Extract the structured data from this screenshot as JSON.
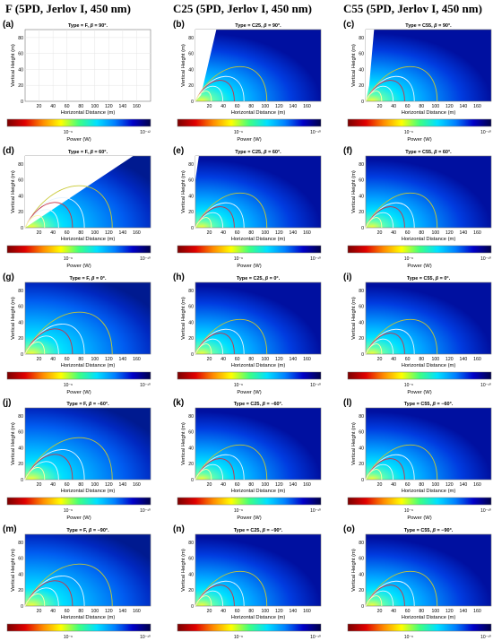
{
  "columns": [
    {
      "header": "F (5PD, Jerlov I, 450 nm)",
      "type": "F"
    },
    {
      "header": "C25 (5PD, Jerlov I, 450 nm)",
      "type": "C25"
    },
    {
      "header": "C55 (5PD, Jerlov I, 450 nm)",
      "type": "C55"
    }
  ],
  "rows": [
    {
      "beta": "90",
      "labels": [
        "(a)",
        "(b)",
        "(c)"
      ]
    },
    {
      "beta": "60",
      "labels": [
        "(d)",
        "(e)",
        "(f)"
      ]
    },
    {
      "beta": "0",
      "labels": [
        "(g)",
        "(h)",
        "(i)"
      ]
    },
    {
      "beta": "−60",
      "labels": [
        "(j)",
        "(k)",
        "(l)"
      ]
    },
    {
      "beta": "−90",
      "labels": [
        "(m)",
        "(n)",
        "(o)"
      ]
    }
  ],
  "axis": {
    "xlabel": "Horizontal Distance (m)",
    "ylabel": "Vertical Height (m)",
    "xticks": [
      "20",
      "40",
      "60",
      "80",
      "100",
      "120",
      "140",
      "160"
    ],
    "yticks": [
      "0",
      "20",
      "40",
      "60",
      "80"
    ]
  },
  "colorbar": {
    "label": "Power (W)",
    "tick_left": "10⁻⁶",
    "tick_right": "10⁻¹⁰",
    "tick_right_a": "10⁻¹²",
    "colors": [
      "#7a0000",
      "#e00000",
      "#ff8c00",
      "#ffff00",
      "#40ff80",
      "#00e0ff",
      "#0080ff",
      "#0000c8",
      "#00004a"
    ]
  },
  "chart_data": {
    "type": "heatmap",
    "title_pattern": "Type = {type}, β = {beta}°",
    "xlabel": "Horizontal Distance (m)",
    "ylabel": "Vertical Height (m)",
    "xlim": [
      0,
      180
    ],
    "ylim": [
      0,
      90
    ],
    "panels": [
      {
        "label": "(a)",
        "type": "F",
        "beta": 90
      },
      {
        "label": "(b)",
        "type": "C25",
        "beta": 90
      },
      {
        "label": "(c)",
        "type": "C55",
        "beta": 90
      },
      {
        "label": "(d)",
        "type": "F",
        "beta": 60
      },
      {
        "label": "(e)",
        "type": "C25",
        "beta": 60
      },
      {
        "label": "(f)",
        "type": "C55",
        "beta": 60
      },
      {
        "label": "(g)",
        "type": "F",
        "beta": 0
      },
      {
        "label": "(h)",
        "type": "C25",
        "beta": 0
      },
      {
        "label": "(i)",
        "type": "C55",
        "beta": 0
      },
      {
        "label": "(j)",
        "type": "F",
        "beta": -60
      },
      {
        "label": "(k)",
        "type": "C25",
        "beta": -60
      },
      {
        "label": "(l)",
        "type": "C55",
        "beta": -60
      },
      {
        "label": "(m)",
        "type": "F",
        "beta": -90
      },
      {
        "label": "(n)",
        "type": "C25",
        "beta": -90
      },
      {
        "label": "(o)",
        "type": "C55",
        "beta": -90
      }
    ]
  }
}
